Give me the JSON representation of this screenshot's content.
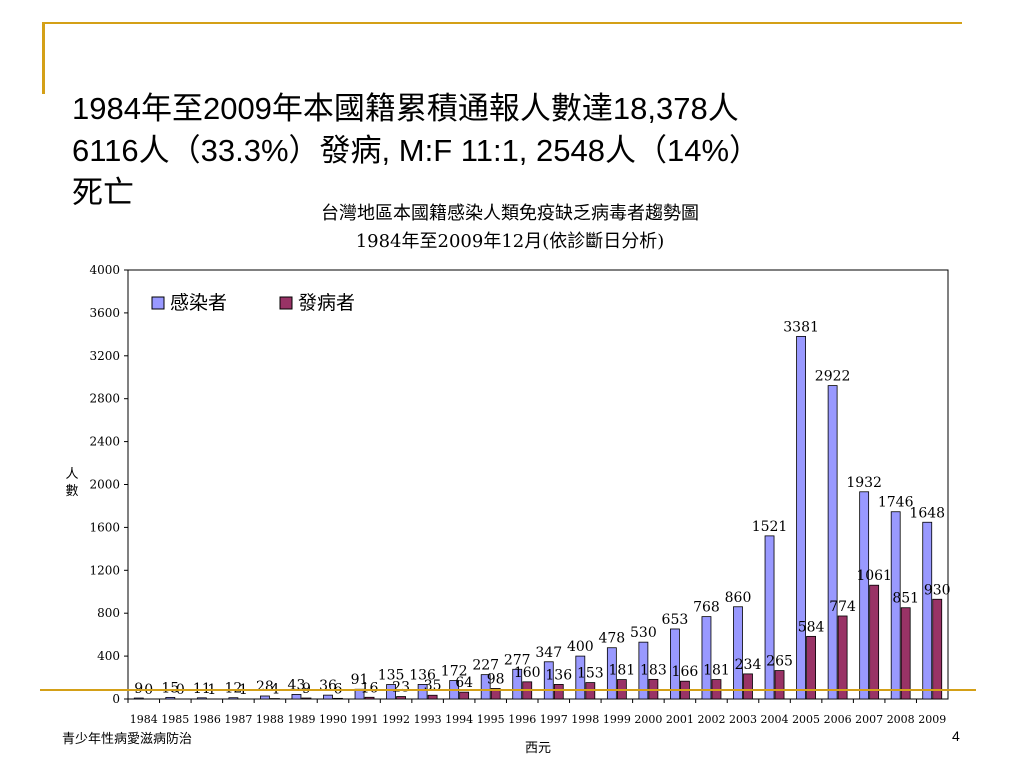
{
  "slide": {
    "headline_line1": "1984年至2009年本國籍累積通報人數達18,378人",
    "headline_line2": "6116人（33.3%）發病, M:F 11:1, 2548人（14%）",
    "headline_line3": "死亡",
    "footer_left": "青少年性病愛滋病防治",
    "page_number": "4"
  },
  "chart_data": {
    "type": "bar",
    "title": "台灣地區本國籍感染人類免疫缺乏病毒者趨勢圖",
    "subtitle": "1984年至2009年12月(依診斷日分析)",
    "xlabel": "西元",
    "ylabel": "人數",
    "ylim": [
      0,
      4000
    ],
    "yticks": [
      "0",
      "400",
      "800",
      "1200",
      "1600",
      "2000",
      "2400",
      "2800",
      "3200",
      "3600",
      "4000"
    ],
    "grid": false,
    "legend_position": "top-left",
    "categories": [
      "1984",
      "1985",
      "1986",
      "1987",
      "1988",
      "1989",
      "1990",
      "1991",
      "1992",
      "1993",
      "1994",
      "1995",
      "1996",
      "1997",
      "1998",
      "1999",
      "2000",
      "2001",
      "2002",
      "2003",
      "2004",
      "2005",
      "2006",
      "2007",
      "2008",
      "2009"
    ],
    "series": [
      {
        "name": "感染者",
        "color": "#9999ff",
        "values": [
          9,
          15,
          11,
          12,
          28,
          43,
          36,
          91,
          135,
          136,
          172,
          227,
          277,
          347,
          400,
          478,
          530,
          653,
          768,
          860,
          1521,
          3381,
          2922,
          1932,
          1746,
          1648
        ],
        "labels": [
          "9",
          "15",
          "11",
          "12",
          "28",
          "43",
          "36",
          "91",
          "135",
          "136",
          "172",
          "227",
          "277",
          "347",
          "400",
          "478",
          "530",
          "653",
          "768",
          "860",
          "1521",
          "3381",
          "2922",
          "1932",
          "1746",
          "1648"
        ]
      },
      {
        "name": "發病者",
        "color": "#993366",
        "values": [
          0,
          0,
          1,
          1,
          4,
          9,
          6,
          16,
          23,
          35,
          64,
          98,
          160,
          136,
          153,
          181,
          183,
          166,
          181,
          234,
          265,
          584,
          774,
          1061,
          851,
          930
        ],
        "labels": [
          "0",
          "0",
          "1",
          "1",
          "4",
          "9",
          "6",
          "16",
          "23",
          "35",
          "64",
          "98",
          "160",
          "136",
          "153",
          "181",
          "183",
          "166",
          "181",
          "234",
          "265",
          "584",
          "774",
          "1061",
          "851",
          "930"
        ]
      }
    ]
  }
}
